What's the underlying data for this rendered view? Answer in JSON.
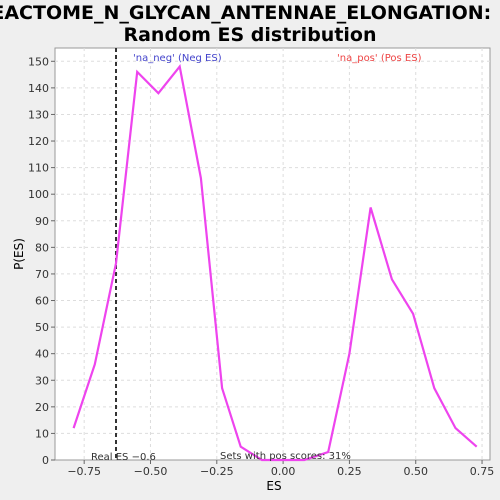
{
  "chart_data": {
    "type": "line",
    "title": "REACTOME_N_GLYCAN_ANTENNAE_ELONGATION:",
    "subtitle": "Random ES distribution",
    "xlabel": "ES",
    "ylabel": "P(ES)",
    "xlim": [
      -0.86,
      0.78
    ],
    "ylim": [
      0,
      155
    ],
    "xticks": [
      -0.75,
      -0.5,
      -0.25,
      0.0,
      0.25,
      0.5,
      0.75
    ],
    "xtick_labels": [
      "−0.75",
      "−0.50",
      "−0.25",
      "0.00",
      "0.25",
      "0.50",
      "0.75"
    ],
    "yticks": [
      0,
      10,
      20,
      30,
      40,
      50,
      60,
      70,
      80,
      90,
      100,
      110,
      120,
      130,
      140,
      150
    ],
    "grid": true,
    "series": [
      {
        "color": "#ee44ee",
        "x": [
          -0.79,
          -0.71,
          -0.63,
          -0.55,
          -0.47,
          -0.39,
          -0.31,
          -0.23,
          -0.16,
          -0.08,
          0.0,
          0.08,
          0.17,
          0.25,
          0.33,
          0.41,
          0.49,
          0.57,
          0.65,
          0.73
        ],
        "y": [
          12,
          36,
          74,
          146,
          138,
          148,
          106,
          27,
          5,
          0,
          0,
          0,
          3,
          40,
          95,
          68,
          55,
          27,
          12,
          5
        ]
      }
    ],
    "real_es": -0.63,
    "annotations": {
      "neg_label": "'na_neg' (Neg ES)",
      "pos_label": "'na_pos' (Pos ES)",
      "real_es_label": "Real ES −0.6",
      "sets_label": "Sets with pos scores: 31%"
    },
    "colors": {
      "neg": "#4444cc",
      "pos": "#ee4444",
      "line": "#ee44ee",
      "grid": "#dddddd"
    }
  }
}
